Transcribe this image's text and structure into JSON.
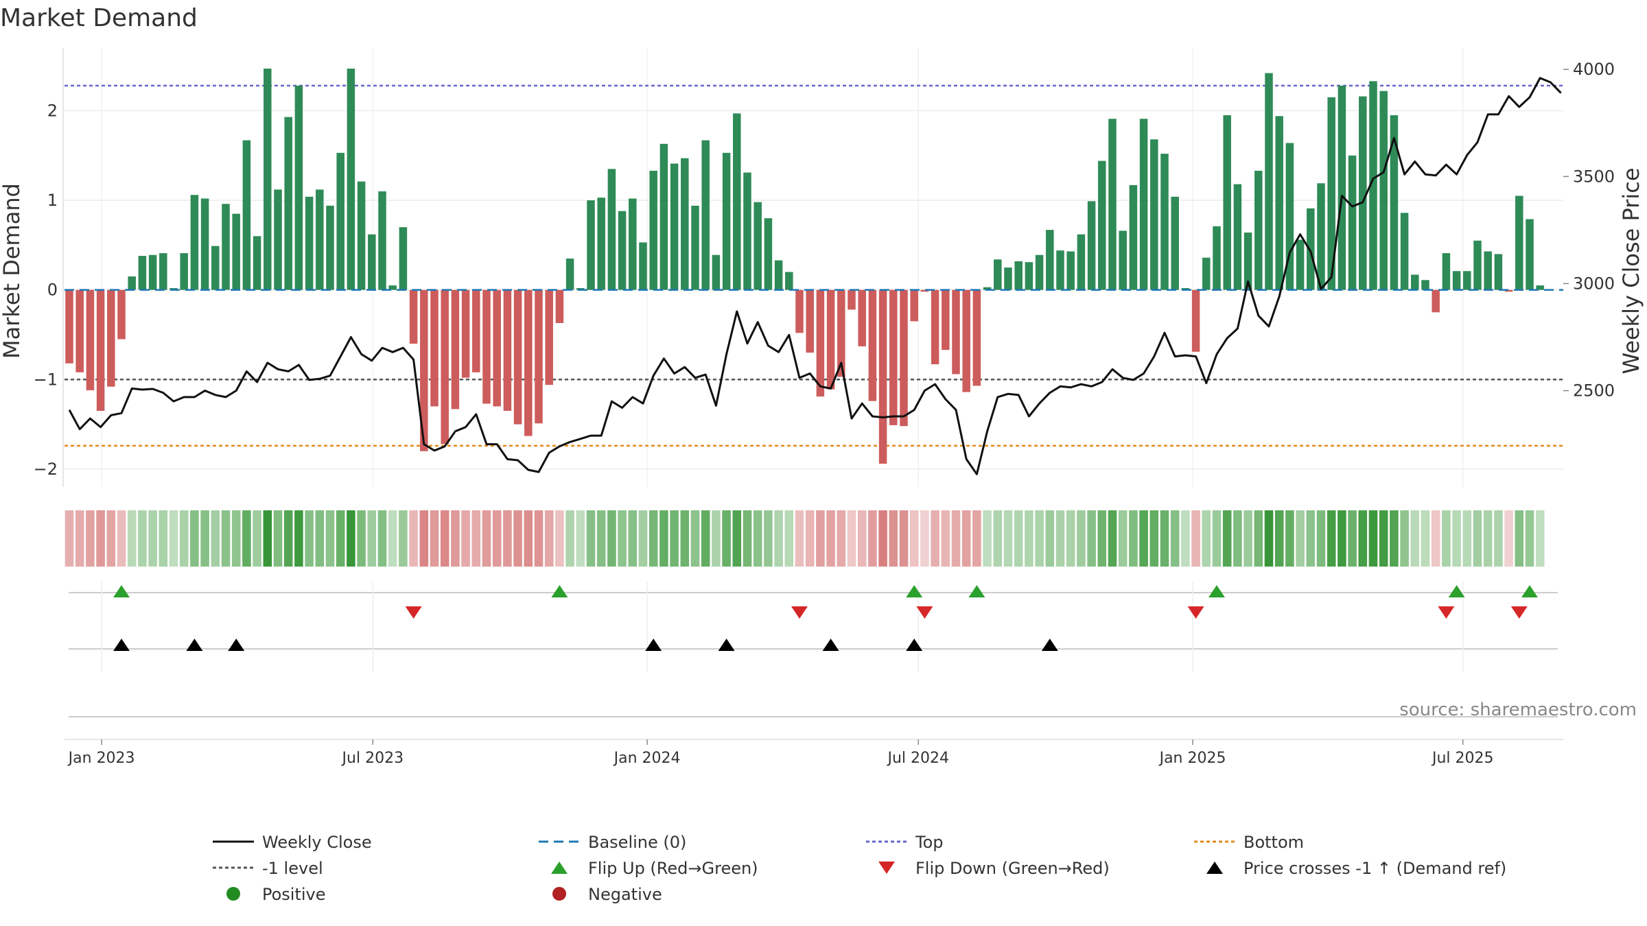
{
  "chart_data": {
    "type": "bar",
    "title": "Market Demand",
    "ylabel_left": "Market Demand",
    "ylabel_right": "Weekly Close Price",
    "ylim_left": [
      -2.2,
      2.7
    ],
    "yticks_left": [
      -2,
      -1,
      0,
      1,
      2
    ],
    "ylim_right": [
      2050,
      4100
    ],
    "yticks_right": [
      2500,
      3000,
      3500,
      4000
    ],
    "date_ticks": [
      "Jan 2023",
      "Jul 2023",
      "Jan 2024",
      "Jul 2024",
      "Jan 2025",
      "Jul 2025"
    ],
    "date_tick_positions": [
      3.1,
      29.1,
      55.4,
      81.4,
      107.7,
      133.6
    ],
    "reference_lines": [
      {
        "name": "Top",
        "value": 2.28,
        "color": "#6666cc"
      },
      {
        "name": "-1 level",
        "value": -1.0,
        "color": "#555555"
      },
      {
        "name": "Bottom",
        "value": -1.74,
        "color": "#e08a1e"
      }
    ],
    "demand": [
      -0.82,
      -0.92,
      -1.12,
      -1.35,
      -1.08,
      -0.55,
      0.15,
      0.38,
      0.39,
      0.41,
      0.02,
      0.41,
      1.06,
      1.02,
      0.49,
      0.96,
      0.85,
      1.67,
      0.6,
      2.47,
      1.12,
      1.93,
      2.28,
      1.04,
      1.12,
      0.94,
      1.53,
      2.47,
      1.21,
      0.62,
      1.1,
      0.05,
      0.7,
      -0.6,
      -1.8,
      -1.3,
      -1.72,
      -1.33,
      -0.98,
      -0.92,
      -1.27,
      -1.3,
      -1.35,
      -1.5,
      -1.63,
      -1.49,
      -1.06,
      -0.37,
      0.35,
      0.02,
      1.0,
      1.03,
      1.35,
      0.88,
      1.02,
      0.53,
      1.33,
      1.63,
      1.41,
      1.47,
      0.94,
      1.67,
      0.39,
      1.53,
      1.97,
      1.31,
      0.98,
      0.8,
      0.33,
      0.2,
      -0.48,
      -0.7,
      -1.19,
      -1.11,
      -0.97,
      -0.22,
      -0.63,
      -1.24,
      -1.94,
      -1.51,
      -1.52,
      -0.35,
      -0.02,
      -0.83,
      -0.67,
      -0.94,
      -1.14,
      -1.07,
      0.03,
      0.34,
      0.25,
      0.32,
      0.31,
      0.39,
      0.67,
      0.44,
      0.43,
      0.62,
      0.99,
      1.44,
      1.91,
      0.66,
      1.17,
      1.91,
      1.68,
      1.52,
      1.04,
      0.02,
      -0.69,
      0.36,
      0.71,
      1.95,
      1.18,
      0.64,
      1.33,
      2.42,
      1.94,
      1.64,
      0.56,
      0.91,
      1.19,
      2.15,
      2.28,
      1.5,
      2.16,
      2.33,
      2.22,
      1.95,
      0.86,
      0.17,
      0.11,
      -0.25,
      0.41,
      0.21,
      0.21,
      0.55,
      0.43,
      0.4,
      -0.02,
      1.05,
      0.79,
      0.05
    ],
    "weekly_close": [
      2410,
      2320,
      2370,
      2330,
      2385,
      2395,
      2510,
      2505,
      2508,
      2490,
      2450,
      2470,
      2470,
      2500,
      2480,
      2470,
      2500,
      2590,
      2540,
      2630,
      2600,
      2590,
      2620,
      2550,
      2555,
      2570,
      2660,
      2750,
      2670,
      2640,
      2700,
      2680,
      2700,
      2645,
      2250,
      2220,
      2240,
      2310,
      2330,
      2390,
      2250,
      2250,
      2180,
      2175,
      2130,
      2120,
      2210,
      2240,
      2260,
      2275,
      2290,
      2290,
      2450,
      2420,
      2470,
      2440,
      2570,
      2650,
      2580,
      2610,
      2560,
      2575,
      2430,
      2670,
      2870,
      2720,
      2820,
      2710,
      2680,
      2760,
      2560,
      2580,
      2520,
      2510,
      2630,
      2370,
      2440,
      2380,
      2375,
      2380,
      2380,
      2410,
      2500,
      2530,
      2460,
      2410,
      2180,
      2110,
      2310,
      2470,
      2485,
      2480,
      2380,
      2440,
      2490,
      2520,
      2515,
      2530,
      2520,
      2540,
      2600,
      2560,
      2550,
      2580,
      2660,
      2770,
      2660,
      2665,
      2660,
      2535,
      2670,
      2745,
      2790,
      3010,
      2850,
      2800,
      2940,
      3145,
      3230,
      3150,
      2975,
      3030,
      3410,
      3360,
      3380,
      3490,
      3520,
      3680,
      3510,
      3570,
      3510,
      3505,
      3555,
      3510,
      3600,
      3660,
      3790,
      3790,
      3875,
      3825,
      3870,
      3960,
      3940,
      3890
    ],
    "flip_up_weeks": [
      5,
      47,
      81,
      87,
      110,
      133,
      140
    ],
    "flip_down_weeks": [
      33,
      70,
      82,
      108,
      132,
      139
    ],
    "price_cross_weeks": [
      5,
      12,
      16,
      56,
      63,
      73,
      81,
      94
    ],
    "legend": [
      [
        "Weekly Close",
        "Baseline (0)",
        "Top",
        "Bottom"
      ],
      [
        "-1 level",
        "Flip Up (Red→Green)",
        "Flip Down (Green→Red)",
        "Price crosses -1 ↑ (Demand ref)"
      ],
      [
        "Positive",
        "Negative"
      ]
    ],
    "source_note": "source: sharemaestro.com"
  },
  "colors": {
    "positive_bar": "#2e8b57",
    "negative_bar": "#cd5c5c",
    "close_line": "#111111",
    "baseline": "#1f77b4",
    "flip_up": "#2ca02c",
    "flip_down": "#d62728",
    "price_cross": "#000000",
    "positive_dot": "#228b22",
    "negative_dot": "#b22222"
  }
}
